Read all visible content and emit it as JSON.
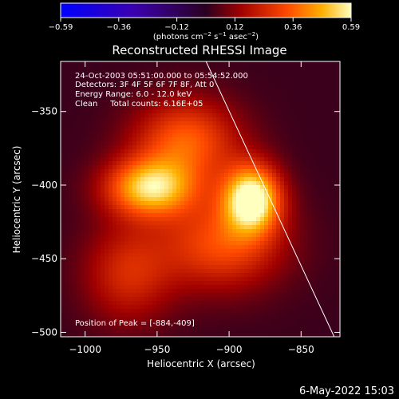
{
  "chart_data": {
    "type": "heatmap",
    "title": "Reconstructed RHESSI Image",
    "xlabel": "Heliocentric X (arcsec)",
    "ylabel": "Heliocentric Y (arcsec)",
    "xlim": [
      -1017,
      -823
    ],
    "ylim": [
      -503,
      -316
    ],
    "x_ticks": [
      {
        "v": -1000,
        "label": "−1000"
      },
      {
        "v": -950,
        "label": "−950"
      },
      {
        "v": -900,
        "label": "−900"
      },
      {
        "v": -850,
        "label": "−850"
      }
    ],
    "y_ticks": [
      {
        "v": -350,
        "label": "−350"
      },
      {
        "v": -400,
        "label": "−400"
      },
      {
        "v": -450,
        "label": "−450"
      },
      {
        "v": -500,
        "label": "−500"
      }
    ],
    "colorbar": {
      "range": [
        -0.59,
        0.59
      ],
      "ticks": [
        "−0.59",
        "−0.36",
        "−0.12",
        "0.12",
        "0.36",
        "0.59"
      ],
      "units_text": "(photons cm",
      "units_sup1": "−2",
      "units_mid": " s",
      "units_sup2": "−1",
      "units_mid2": " asec",
      "units_sup3": "−2",
      "units_end": ")"
    },
    "sources": [
      {
        "x": -884,
        "y": -409,
        "peak": 0.59,
        "sx": 14,
        "sy": 16
      },
      {
        "x": -955,
        "y": -402,
        "peak": 0.48,
        "sx": 22,
        "sy": 14
      },
      {
        "x": -930,
        "y": -370,
        "peak": 0.33,
        "sx": 26,
        "sy": 20
      },
      {
        "x": -905,
        "y": -440,
        "peak": 0.3,
        "sx": 30,
        "sy": 22
      },
      {
        "x": -970,
        "y": -460,
        "peak": 0.22,
        "sx": 22,
        "sy": 24
      }
    ],
    "limb": {
      "x_start": -916,
      "y_start": -316,
      "x_end": -827,
      "y_end": -503
    },
    "annotations": {
      "time": "24-Oct-2003 05:51:00.000 to 05:54:52.000",
      "detectors": "Detectors: 3F 4F 5F 6F 7F 8F, Att 0",
      "energy": "Energy Range: 6.0 - 12.0 keV",
      "algorithm": "Clean     Total counts: 6.16E+05",
      "peak": "Position of Peak = [-884,-409]"
    },
    "footer_date": "6-May-2022 15:03"
  }
}
